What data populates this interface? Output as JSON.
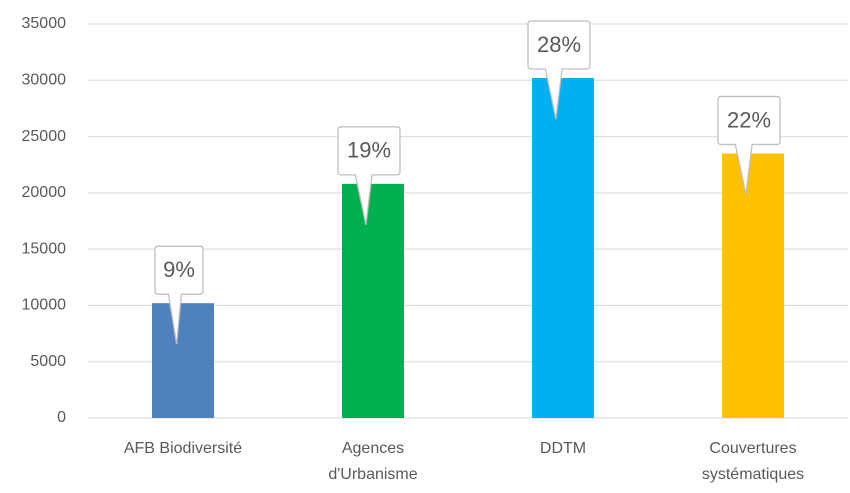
{
  "chart_data": {
    "type": "bar",
    "categories": [
      "AFB Biodiversité",
      "Agences d'Urbanisme",
      "DDTM",
      "Couvertures systématiques"
    ],
    "values": [
      10200,
      20800,
      30200,
      23500
    ],
    "colors": [
      "#4f81bd",
      "#00b050",
      "#00b0f0",
      "#ffc000"
    ],
    "callouts": [
      "9%",
      "19%",
      "28%",
      "22%"
    ],
    "ylim": [
      0,
      35000
    ],
    "yticks": [
      0,
      5000,
      10000,
      15000,
      20000,
      25000,
      30000,
      35000
    ],
    "grid": true
  }
}
